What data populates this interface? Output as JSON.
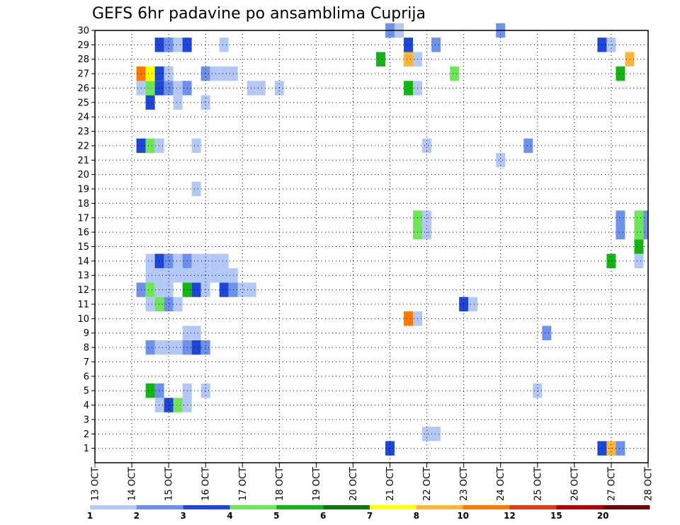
{
  "chart_data": {
    "type": "heatmap",
    "title": "GEFS 6hr padavine po ansamblima Cuprija",
    "xlabel": "",
    "ylabel": "",
    "x_tick_labels": [
      "13 OCT",
      "14 OCT",
      "15 OCT",
      "16 OCT",
      "17 OCT",
      "18 OCT",
      "19 OCT",
      "20 OCT",
      "21 OCT",
      "22 OCT",
      "23 OCT",
      "24 OCT",
      "25 OCT",
      "26 OCT",
      "27 OCT",
      "28 OCT"
    ],
    "x_unit": "6-hour steps from 13 OCT 00Z",
    "xlim": [
      0,
      60
    ],
    "ylim": [
      0,
      30
    ],
    "y_tick_labels": [
      "1",
      "2",
      "3",
      "4",
      "5",
      "6",
      "7",
      "8",
      "9",
      "10",
      "11",
      "12",
      "13",
      "14",
      "15",
      "16",
      "17",
      "18",
      "19",
      "20",
      "21",
      "22",
      "23",
      "24",
      "25",
      "26",
      "27",
      "28",
      "29",
      "30"
    ],
    "grid": true,
    "colorbar": {
      "labels": [
        "1",
        "2",
        "3",
        "4",
        "5",
        "6",
        "7",
        "8",
        "10",
        "12",
        "15",
        "20"
      ],
      "colors": [
        "#b4c8f5",
        "#6e91eb",
        "#1e46d7",
        "#6ee65a",
        "#14b414",
        "#0a780a",
        "#ffff00",
        "#ffb43c",
        "#ff7800",
        "#e13c14",
        "#b40000",
        "#6e0000"
      ]
    },
    "cells": [
      {
        "m": 1,
        "x": 32,
        "c": 3
      },
      {
        "m": 1,
        "x": 55,
        "c": 3
      },
      {
        "m": 1,
        "x": 56,
        "c": 8
      },
      {
        "m": 1,
        "x": 57,
        "c": 2
      },
      {
        "m": 2,
        "x": 36,
        "c": 1
      },
      {
        "m": 2,
        "x": 37,
        "c": 1
      },
      {
        "m": 4,
        "x": 7,
        "c": 1
      },
      {
        "m": 4,
        "x": 8,
        "c": 3
      },
      {
        "m": 4,
        "x": 9,
        "c": 4
      },
      {
        "m": 4,
        "x": 10,
        "c": 1
      },
      {
        "m": 5,
        "x": 6,
        "c": 5
      },
      {
        "m": 5,
        "x": 7,
        "c": 2
      },
      {
        "m": 5,
        "x": 10,
        "c": 1
      },
      {
        "m": 5,
        "x": 12,
        "c": 1
      },
      {
        "m": 5,
        "x": 48,
        "c": 1
      },
      {
        "m": 8,
        "x": 6,
        "c": 2
      },
      {
        "m": 8,
        "x": 7,
        "c": 1
      },
      {
        "m": 8,
        "x": 8,
        "c": 1
      },
      {
        "m": 8,
        "x": 9,
        "c": 1
      },
      {
        "m": 8,
        "x": 10,
        "c": 2
      },
      {
        "m": 8,
        "x": 11,
        "c": 3
      },
      {
        "m": 8,
        "x": 12,
        "c": 2
      },
      {
        "m": 9,
        "x": 10,
        "c": 1
      },
      {
        "m": 9,
        "x": 11,
        "c": 1
      },
      {
        "m": 9,
        "x": 49,
        "c": 2
      },
      {
        "m": 10,
        "x": 34,
        "c": 9
      },
      {
        "m": 10,
        "x": 35,
        "c": 1
      },
      {
        "m": 11,
        "x": 6,
        "c": 1
      },
      {
        "m": 11,
        "x": 7,
        "c": 4
      },
      {
        "m": 11,
        "x": 8,
        "c": 2
      },
      {
        "m": 11,
        "x": 9,
        "c": 1
      },
      {
        "m": 11,
        "x": 40,
        "c": 3
      },
      {
        "m": 11,
        "x": 41,
        "c": 1
      },
      {
        "m": 12,
        "x": 5,
        "c": 2
      },
      {
        "m": 12,
        "x": 6,
        "c": 4
      },
      {
        "m": 12,
        "x": 7,
        "c": 1
      },
      {
        "m": 12,
        "x": 8,
        "c": 1
      },
      {
        "m": 12,
        "x": 10,
        "c": 5
      },
      {
        "m": 12,
        "x": 11,
        "c": 3
      },
      {
        "m": 12,
        "x": 12,
        "c": 1
      },
      {
        "m": 12,
        "x": 14,
        "c": 3
      },
      {
        "m": 12,
        "x": 15,
        "c": 2
      },
      {
        "m": 12,
        "x": 16,
        "c": 1
      },
      {
        "m": 12,
        "x": 17,
        "c": 1
      },
      {
        "m": 13,
        "x": 6,
        "c": 1
      },
      {
        "m": 13,
        "x": 7,
        "c": 1
      },
      {
        "m": 13,
        "x": 8,
        "c": 1
      },
      {
        "m": 13,
        "x": 9,
        "c": 1
      },
      {
        "m": 13,
        "x": 10,
        "c": 1
      },
      {
        "m": 13,
        "x": 11,
        "c": 1
      },
      {
        "m": 13,
        "x": 12,
        "c": 1
      },
      {
        "m": 13,
        "x": 13,
        "c": 1
      },
      {
        "m": 13,
        "x": 14,
        "c": 1
      },
      {
        "m": 13,
        "x": 15,
        "c": 1
      },
      {
        "m": 14,
        "x": 6,
        "c": 1
      },
      {
        "m": 14,
        "x": 7,
        "c": 3
      },
      {
        "m": 14,
        "x": 8,
        "c": 2
      },
      {
        "m": 14,
        "x": 9,
        "c": 1
      },
      {
        "m": 14,
        "x": 10,
        "c": 2
      },
      {
        "m": 14,
        "x": 11,
        "c": 1
      },
      {
        "m": 14,
        "x": 12,
        "c": 1
      },
      {
        "m": 14,
        "x": 13,
        "c": 1
      },
      {
        "m": 14,
        "x": 14,
        "c": 1
      },
      {
        "m": 14,
        "x": 56,
        "c": 5
      },
      {
        "m": 14,
        "x": 59,
        "c": 1
      },
      {
        "m": 15,
        "x": 59,
        "c": 5
      },
      {
        "m": 16,
        "x": 35,
        "c": 4
      },
      {
        "m": 16,
        "x": 36,
        "c": 1
      },
      {
        "m": 16,
        "x": 57,
        "c": 2
      },
      {
        "m": 16,
        "x": 59,
        "c": 4
      },
      {
        "m": 16,
        "x": 60,
        "c": 2
      },
      {
        "m": 17,
        "x": 35,
        "c": 4
      },
      {
        "m": 17,
        "x": 36,
        "c": 1
      },
      {
        "m": 17,
        "x": 57,
        "c": 2
      },
      {
        "m": 17,
        "x": 59,
        "c": 4
      },
      {
        "m": 17,
        "x": 60,
        "c": 2
      },
      {
        "m": 19,
        "x": 11,
        "c": 1
      },
      {
        "m": 21,
        "x": 44,
        "c": 1
      },
      {
        "m": 22,
        "x": 5,
        "c": 3
      },
      {
        "m": 22,
        "x": 6,
        "c": 4
      },
      {
        "m": 22,
        "x": 7,
        "c": 1
      },
      {
        "m": 22,
        "x": 11,
        "c": 1
      },
      {
        "m": 22,
        "x": 36,
        "c": 1
      },
      {
        "m": 22,
        "x": 47,
        "c": 2
      },
      {
        "m": 25,
        "x": 6,
        "c": 3
      },
      {
        "m": 25,
        "x": 9,
        "c": 1
      },
      {
        "m": 25,
        "x": 12,
        "c": 1
      },
      {
        "m": 26,
        "x": 5,
        "c": 1
      },
      {
        "m": 26,
        "x": 6,
        "c": 4
      },
      {
        "m": 26,
        "x": 7,
        "c": 3
      },
      {
        "m": 26,
        "x": 8,
        "c": 2
      },
      {
        "m": 26,
        "x": 9,
        "c": 1
      },
      {
        "m": 26,
        "x": 10,
        "c": 2
      },
      {
        "m": 26,
        "x": 17,
        "c": 1
      },
      {
        "m": 26,
        "x": 18,
        "c": 1
      },
      {
        "m": 26,
        "x": 20,
        "c": 1
      },
      {
        "m": 26,
        "x": 34,
        "c": 5
      },
      {
        "m": 26,
        "x": 35,
        "c": 1
      },
      {
        "m": 27,
        "x": 5,
        "c": 9
      },
      {
        "m": 27,
        "x": 6,
        "c": 7
      },
      {
        "m": 27,
        "x": 7,
        "c": 3
      },
      {
        "m": 27,
        "x": 8,
        "c": 1
      },
      {
        "m": 27,
        "x": 12,
        "c": 2
      },
      {
        "m": 27,
        "x": 13,
        "c": 1
      },
      {
        "m": 27,
        "x": 14,
        "c": 1
      },
      {
        "m": 27,
        "x": 15,
        "c": 1
      },
      {
        "m": 27,
        "x": 39,
        "c": 4
      },
      {
        "m": 27,
        "x": 57,
        "c": 5
      },
      {
        "m": 28,
        "x": 31,
        "c": 5
      },
      {
        "m": 28,
        "x": 34,
        "c": 8
      },
      {
        "m": 28,
        "x": 35,
        "c": 1
      },
      {
        "m": 28,
        "x": 58,
        "c": 8
      },
      {
        "m": 29,
        "x": 7,
        "c": 3
      },
      {
        "m": 29,
        "x": 8,
        "c": 2
      },
      {
        "m": 29,
        "x": 9,
        "c": 1
      },
      {
        "m": 29,
        "x": 10,
        "c": 3
      },
      {
        "m": 29,
        "x": 14,
        "c": 1
      },
      {
        "m": 29,
        "x": 34,
        "c": 3
      },
      {
        "m": 29,
        "x": 37,
        "c": 2
      },
      {
        "m": 29,
        "x": 55,
        "c": 3
      },
      {
        "m": 29,
        "x": 56,
        "c": 1
      },
      {
        "m": 30,
        "x": 32,
        "c": 2
      },
      {
        "m": 30,
        "x": 33,
        "c": 1
      },
      {
        "m": 30,
        "x": 44,
        "c": 2
      }
    ]
  }
}
